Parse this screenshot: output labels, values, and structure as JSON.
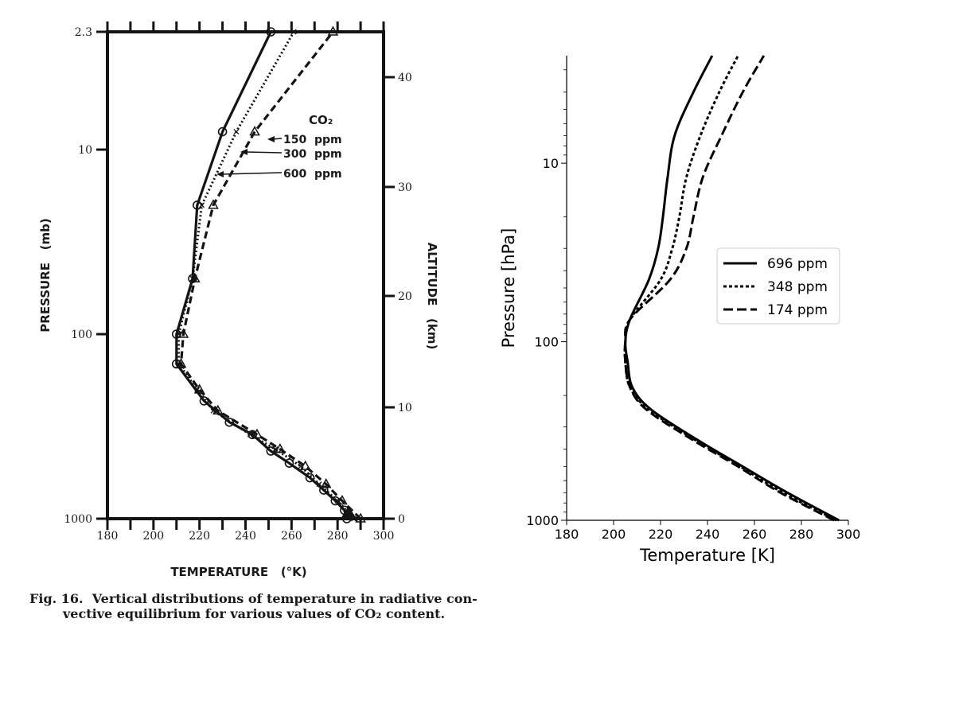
{
  "chart_data": [
    {
      "type": "line",
      "source_style": "scanned figure",
      "xlabel": "TEMPERATURE   (°K)",
      "ylabel": "PRESSURE   (mb)",
      "y2label": "ALTITUDE   (km)",
      "caption_prefix": "Fig. 16.",
      "caption_line1": "Vertical distributions of temperature in radiative con-",
      "caption_line2": "vective equilibrium for various values of CO₂ content.",
      "xlim": [
        180,
        300
      ],
      "ylim": [
        1000,
        2.3
      ],
      "yscale": "log",
      "x_ticks": [
        "180",
        "200",
        "220",
        "240",
        "260",
        "280",
        "300"
      ],
      "y_ticks": [
        "2.3",
        "10",
        "100",
        "1000"
      ],
      "y2_ticks": [
        "0",
        "10",
        "20",
        "30",
        "40"
      ],
      "legend_title": "CO₂",
      "series": [
        {
          "name": "150  ppm",
          "marker": "triangle",
          "style": "dashed",
          "points": [
            [
              290,
              1000
            ],
            [
              282,
              800
            ],
            [
              275,
              650
            ],
            [
              266,
              520
            ],
            [
              255,
              420
            ],
            [
              245,
              350
            ],
            [
              228,
              260
            ],
            [
              220,
              200
            ],
            [
              212,
              145
            ],
            [
              213,
              100
            ],
            [
              218,
              50
            ],
            [
              226,
              20
            ],
            [
              244,
              8
            ],
            [
              278,
              2.3
            ]
          ]
        },
        {
          "name": "300  ppm",
          "marker": "x",
          "style": "dotted",
          "points": [
            [
              287,
              1000
            ],
            [
              280,
              800
            ],
            [
              272,
              650
            ],
            [
              264,
              520
            ],
            [
              253,
              420
            ],
            [
              242,
              350
            ],
            [
              226,
              260
            ],
            [
              219,
              200
            ],
            [
              211,
              145
            ],
            [
              211,
              100
            ],
            [
              217,
              50
            ],
            [
              221,
              20
            ],
            [
              236,
              8
            ],
            [
              261,
              2.3
            ]
          ]
        },
        {
          "name": "600  ppm",
          "marker": "circle",
          "style": "solid",
          "points": [
            [
              284,
              1000
            ],
            [
              283,
              900
            ],
            [
              279,
              800
            ],
            [
              274,
              700
            ],
            [
              268,
              600
            ],
            [
              259,
              500
            ],
            [
              251,
              430
            ],
            [
              243,
              350
            ],
            [
              233,
              300
            ],
            [
              222,
              230
            ],
            [
              210,
              145
            ],
            [
              210,
              100
            ],
            [
              217,
              50
            ],
            [
              219,
              20
            ],
            [
              230,
              8
            ],
            [
              251,
              2.3
            ]
          ]
        }
      ]
    },
    {
      "type": "line",
      "xlabel": "Temperature [K]",
      "ylabel": "Pressure [hPa]",
      "xlim": [
        180,
        300
      ],
      "ylim": [
        1000,
        2.5
      ],
      "yscale": "log",
      "x_ticks": [
        "180",
        "200",
        "220",
        "240",
        "260",
        "280",
        "300"
      ],
      "y_ticks": [
        "10",
        "100",
        "1000"
      ],
      "legend_location": "center-right",
      "series": [
        {
          "name": "696 ppm",
          "style": "solid",
          "points": [
            [
              296,
              1000
            ],
            [
              274,
              700
            ],
            [
              255,
              500
            ],
            [
              235,
              350
            ],
            [
              216,
              240
            ],
            [
              208,
              180
            ],
            [
              206,
              130
            ],
            [
              205,
              100
            ],
            [
              207,
              75
            ],
            [
              215,
              45
            ],
            [
              219,
              30
            ],
            [
              221,
              20
            ],
            [
              223,
              12
            ],
            [
              226,
              7
            ],
            [
              234,
              4
            ],
            [
              242,
              2.5
            ]
          ]
        },
        {
          "name": "348 ppm",
          "style": "dotted",
          "points": [
            [
              295,
              1000
            ],
            [
              272,
              700
            ],
            [
              254,
              500
            ],
            [
              234,
              350
            ],
            [
              215,
              240
            ],
            [
              207,
              180
            ],
            [
              205,
              130
            ],
            [
              205,
              100
            ],
            [
              207,
              75
            ],
            [
              220,
              45
            ],
            [
              225,
              30
            ],
            [
              228,
              20
            ],
            [
              231,
              12
            ],
            [
              237,
              7
            ],
            [
              245,
              4
            ],
            [
              253,
              2.5
            ]
          ]
        },
        {
          "name": "174 ppm",
          "style": "dashed",
          "points": [
            [
              294,
              1000
            ],
            [
              271,
              700
            ],
            [
              253,
              500
            ],
            [
              233,
              350
            ],
            [
              214,
              240
            ],
            [
              207,
              180
            ],
            [
              205,
              130
            ],
            [
              205,
              100
            ],
            [
              207,
              75
            ],
            [
              224,
              45
            ],
            [
              231,
              30
            ],
            [
              234,
              20
            ],
            [
              238,
              12
            ],
            [
              246,
              7
            ],
            [
              255,
              4
            ],
            [
              264,
              2.5
            ]
          ]
        }
      ]
    }
  ]
}
